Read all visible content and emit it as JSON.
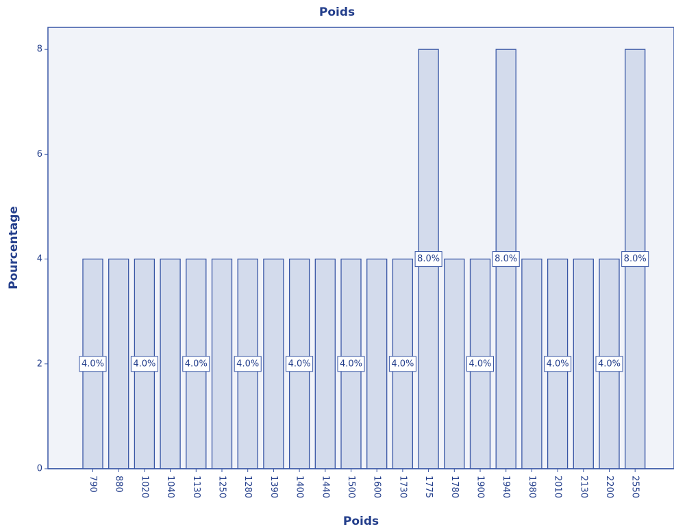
{
  "chart_data": {
    "type": "bar",
    "title": "Poids",
    "x_label": "Poids",
    "y_label": "Pourcentage",
    "categories": [
      "790",
      "880",
      "1020",
      "1040",
      "1130",
      "1250",
      "1280",
      "1390",
      "1400",
      "1440",
      "1500",
      "1600",
      "1730",
      "1775",
      "1780",
      "1900",
      "1940",
      "1980",
      "2010",
      "2130",
      "2200",
      "2550"
    ],
    "values": [
      4,
      4,
      4,
      4,
      4,
      4,
      4,
      4,
      4,
      4,
      4,
      4,
      4,
      8,
      4,
      4,
      8,
      4,
      4,
      4,
      4,
      8
    ],
    "value_labels": [
      "4.0%",
      null,
      "4.0%",
      null,
      "4.0%",
      null,
      "4.0%",
      null,
      "4.0%",
      null,
      "4.0%",
      null,
      "4.0%",
      "8.0%",
      null,
      "4.0%",
      "8.0%",
      null,
      "4.0%",
      null,
      "4.0%",
      "8.0%"
    ],
    "color": "#d3dbec",
    "ylim": [
      0,
      8.42
    ],
    "yticks": [
      0,
      2,
      4,
      6,
      8
    ],
    "grid": false
  }
}
